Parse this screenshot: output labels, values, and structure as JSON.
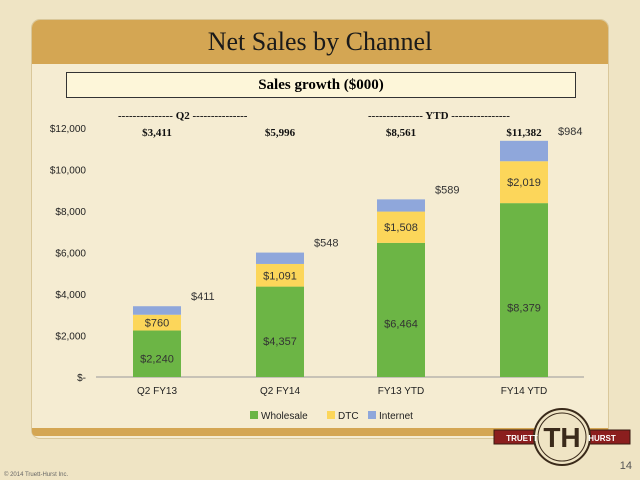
{
  "slide_title": "Net Sales by Channel",
  "box_title": "Sales growth ($000)",
  "period_labels": {
    "q2": "--------------- Q2 ---------------",
    "ytd": "--------------- YTD ----------------"
  },
  "totals": [
    "$3,411",
    "$5,996",
    "$8,561",
    "$11,382"
  ],
  "page_number": "14",
  "copyright": "© 2014 Truett-Hurst Inc.",
  "logo": {
    "left": "TRUETT",
    "right": "HURST",
    "monogram": "TH"
  },
  "colors": {
    "wholesale": "#6cb545",
    "dtc": "#fcd65a",
    "internet": "#8fa7db",
    "title_bar": "#d4a653"
  },
  "chart_data": {
    "type": "bar",
    "stacked": true,
    "categories": [
      "Q2 FY13",
      "Q2 FY14",
      "FY13 YTD",
      "FY14 YTD"
    ],
    "series": [
      {
        "name": "Wholesale",
        "values": [
          2240,
          4357,
          6464,
          8379
        ],
        "labels": [
          "$2,240",
          "$4,357",
          "$6,464",
          "$8,379"
        ]
      },
      {
        "name": "DTC",
        "values": [
          760,
          1091,
          1508,
          2019
        ],
        "labels": [
          "$760",
          "$1,091",
          "$1,508",
          "$2,019"
        ]
      },
      {
        "name": "Internet",
        "values": [
          411,
          548,
          589,
          984
        ],
        "labels": [
          "$411",
          "$548",
          "$589",
          "$984"
        ]
      }
    ],
    "ylim": [
      0,
      12000
    ],
    "yticks": [
      0,
      2000,
      4000,
      6000,
      8000,
      10000,
      12000
    ],
    "ytick_labels": [
      "$-",
      "$2,000",
      "$4,000",
      "$6,000",
      "$8,000",
      "$10,000",
      "$12,000"
    ],
    "legend_position": "bottom",
    "grid": false
  }
}
